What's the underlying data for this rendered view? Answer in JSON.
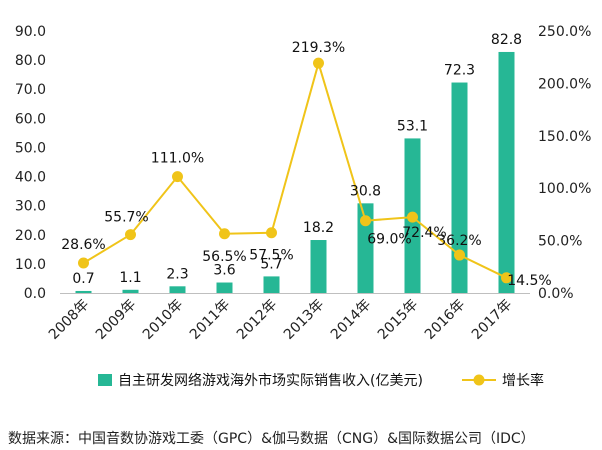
{
  "chart_data": {
    "type": "bar",
    "categories": [
      "2008年",
      "2009年",
      "2010年",
      "2011年",
      "2012年",
      "2013年",
      "2014年",
      "2015年",
      "2016年",
      "2017年"
    ],
    "series": [
      {
        "name": "自主研发网络游戏海外市场实际销售收入(亿美元)",
        "type": "bar",
        "axis": "left",
        "color": "#26b795",
        "values": [
          0.7,
          1.1,
          2.3,
          3.6,
          5.7,
          18.2,
          30.8,
          53.1,
          72.3,
          82.8
        ],
        "labels": [
          "0.7",
          "1.1",
          "2.3",
          "3.6",
          "5.7",
          "18.2",
          "30.8",
          "53.1",
          "72.3",
          "82.8"
        ]
      },
      {
        "name": "增长率",
        "type": "line",
        "axis": "right",
        "color": "#f0c419",
        "values": [
          28.6,
          55.7,
          111.0,
          56.5,
          57.5,
          219.3,
          69.0,
          72.4,
          36.2,
          14.5
        ],
        "labels": [
          "28.6%",
          "55.7%",
          "111.0%",
          "56.5%",
          "57.5%",
          "219.3%",
          "69.0%",
          "72.4%",
          "36.2%",
          "14.5%"
        ]
      }
    ],
    "y_left": {
      "ylim": [
        0,
        90
      ],
      "ticks": [
        "0.0",
        "10.0",
        "20.0",
        "30.0",
        "40.0",
        "50.0",
        "60.0",
        "70.0",
        "80.0",
        "90.0"
      ]
    },
    "y_right": {
      "ylim": [
        0,
        250
      ],
      "ticks": [
        "0.0%",
        "50.0%",
        "100.0%",
        "150.0%",
        "200.0%",
        "250.0%"
      ]
    },
    "legend": "bottom",
    "grid": false
  },
  "source_text": "数据来源：中国音数协游戏工委（GPC）&伽马数据（CNG）&国际数据公司（IDC）"
}
